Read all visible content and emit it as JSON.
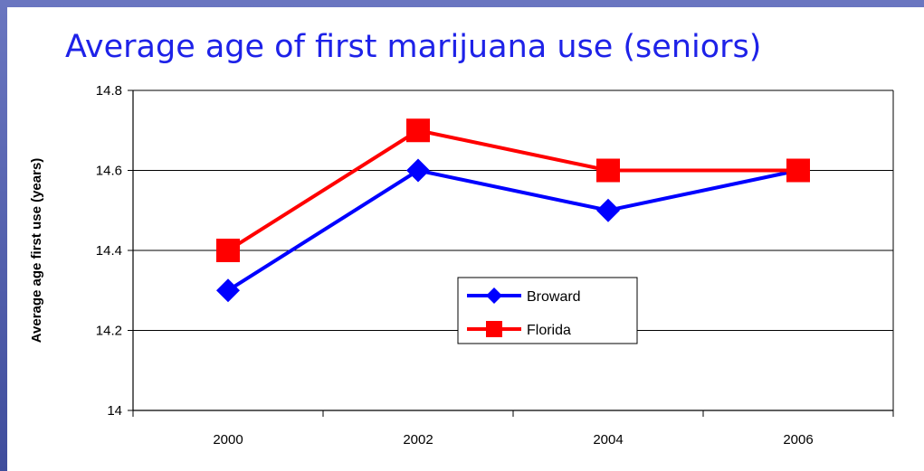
{
  "chart_data": {
    "type": "line",
    "title": "Average age of first marijuana use (seniors)",
    "xlabel": "",
    "ylabel": "Average age first use (years)",
    "categories": [
      "2000",
      "2002",
      "2004",
      "2006"
    ],
    "ylim": [
      14,
      14.8
    ],
    "yticks": [
      "14",
      "14.2",
      "14.4",
      "14.6",
      "14.8"
    ],
    "grid": true,
    "legend_position": "center",
    "series": [
      {
        "name": "Broward",
        "values": [
          14.3,
          14.6,
          14.5,
          14.6
        ],
        "color": "#0000ff",
        "marker": "diamond"
      },
      {
        "name": "Florida",
        "values": [
          14.4,
          14.7,
          14.6,
          14.6
        ],
        "color": "#ff0000",
        "marker": "square"
      }
    ]
  }
}
